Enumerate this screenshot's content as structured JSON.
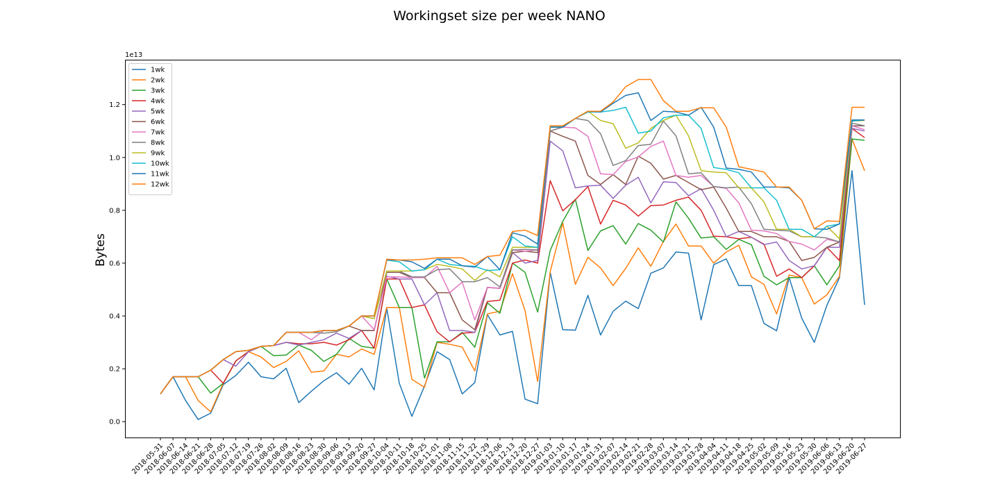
{
  "chart_data": {
    "type": "line",
    "title": "Workingset size per week NANO",
    "xlabel": "",
    "ylabel": "Bytes",
    "y_offset_label": "1e13",
    "ylim": [
      -0.06,
      1.37
    ],
    "y_ticks": [
      "0.0",
      "0.2",
      "0.4",
      "0.6",
      "0.8",
      "1.0",
      "1.2"
    ],
    "grid": false,
    "legend_position": "top-left",
    "categories": [
      "2018-05-31",
      "2018-06-07",
      "2018-06-14",
      "2018-06-21",
      "2018-06-28",
      "2018-07-05",
      "2018-07-12",
      "2018-07-19",
      "2018-07-26",
      "2018-08-02",
      "2018-08-09",
      "2018-08-16",
      "2018-08-23",
      "2018-08-30",
      "2018-09-06",
      "2018-09-13",
      "2018-09-20",
      "2018-09-27",
      "2018-10-04",
      "2018-10-11",
      "2018-10-18",
      "2018-10-25",
      "2018-11-01",
      "2018-11-08",
      "2018-11-15",
      "2018-11-22",
      "2018-11-29",
      "2018-12-06",
      "2018-12-13",
      "2018-12-20",
      "2018-12-27",
      "2019-01-03",
      "2019-01-10",
      "2019-01-17",
      "2019-01-24",
      "2019-01-31",
      "2019-02-07",
      "2019-02-14",
      "2019-02-21",
      "2019-02-28",
      "2019-03-07",
      "2019-03-14",
      "2019-03-21",
      "2019-03-28",
      "2019-04-04",
      "2019-04-11",
      "2019-04-18",
      "2019-04-25",
      "2019-05-02",
      "2019-05-09",
      "2019-05-16",
      "2019-05-23",
      "2019-05-30",
      "2019-06-06",
      "2019-06-13",
      "2019-06-20",
      "2019-06-27"
    ],
    "series": [
      {
        "name": "1wk",
        "color": "#1f77b4",
        "values": [
          0.105,
          0.17,
          0.08,
          0.008,
          0.032,
          0.14,
          0.175,
          0.225,
          0.17,
          0.162,
          0.202,
          0.072,
          0.115,
          0.155,
          0.185,
          0.142,
          0.202,
          0.12,
          0.43,
          0.145,
          0.02,
          0.135,
          0.265,
          0.235,
          0.105,
          0.148,
          0.405,
          0.328,
          0.342,
          0.085,
          0.068,
          0.565,
          0.348,
          0.346,
          0.478,
          0.328,
          0.418,
          0.456,
          0.428,
          0.562,
          0.582,
          0.642,
          0.638,
          0.385,
          0.594,
          0.616,
          0.515,
          0.515,
          0.372,
          0.344,
          0.545,
          0.392,
          0.3,
          0.44,
          0.545,
          0.95,
          0.442
        ]
      },
      {
        "name": "2wk",
        "color": "#ff7f0e",
        "values": [
          0.105,
          0.17,
          0.17,
          0.08,
          0.037,
          0.145,
          0.23,
          0.265,
          0.245,
          0.205,
          0.228,
          0.268,
          0.187,
          0.192,
          0.255,
          0.245,
          0.275,
          0.255,
          0.432,
          0.432,
          0.16,
          0.13,
          0.3,
          0.293,
          0.282,
          0.192,
          0.408,
          0.418,
          0.56,
          0.42,
          0.152,
          0.568,
          0.752,
          0.52,
          0.622,
          0.582,
          0.515,
          0.58,
          0.658,
          0.588,
          0.682,
          0.748,
          0.665,
          0.665,
          0.6,
          0.642,
          0.668,
          0.548,
          0.52,
          0.408,
          0.555,
          0.545,
          0.445,
          0.48,
          0.55,
          1.07,
          0.95
        ]
      },
      {
        "name": "3wk",
        "color": "#2ca02c",
        "values": [
          0.105,
          0.17,
          0.17,
          0.17,
          0.108,
          0.145,
          0.23,
          0.265,
          0.285,
          0.25,
          0.252,
          0.29,
          0.27,
          0.228,
          0.255,
          0.315,
          0.285,
          0.278,
          0.54,
          0.432,
          0.432,
          0.165,
          0.302,
          0.302,
          0.338,
          0.282,
          0.45,
          0.41,
          0.6,
          0.565,
          0.415,
          0.648,
          0.758,
          0.842,
          0.648,
          0.722,
          0.742,
          0.672,
          0.75,
          0.725,
          0.68,
          0.832,
          0.77,
          0.695,
          0.7,
          0.652,
          0.69,
          0.67,
          0.55,
          0.518,
          0.545,
          0.545,
          0.59,
          0.518,
          0.59,
          1.07,
          1.065
        ]
      },
      {
        "name": "4wk",
        "color": "#d62728",
        "values": [
          0.105,
          0.17,
          0.17,
          0.17,
          0.195,
          0.145,
          0.23,
          0.265,
          0.285,
          0.288,
          0.3,
          0.295,
          0.295,
          0.3,
          0.29,
          0.31,
          0.345,
          0.278,
          0.54,
          0.54,
          0.432,
          0.442,
          0.34,
          0.302,
          0.335,
          0.338,
          0.455,
          0.46,
          0.6,
          0.612,
          0.6,
          0.912,
          0.798,
          0.84,
          0.89,
          0.748,
          0.838,
          0.82,
          0.778,
          0.818,
          0.82,
          0.838,
          0.85,
          0.8,
          0.702,
          0.7,
          0.692,
          0.698,
          0.672,
          0.55,
          0.578,
          0.545,
          0.59,
          0.66,
          0.61,
          1.11,
          1.075
        ]
      },
      {
        "name": "5wk",
        "color": "#9467bd",
        "values": [
          0.105,
          0.17,
          0.17,
          0.17,
          0.195,
          0.235,
          0.21,
          0.265,
          0.285,
          0.288,
          0.3,
          0.29,
          0.3,
          0.31,
          0.335,
          0.315,
          0.345,
          0.345,
          0.55,
          0.54,
          0.54,
          0.442,
          0.488,
          0.345,
          0.345,
          0.338,
          0.508,
          0.505,
          0.64,
          0.6,
          0.61,
          1.062,
          1.025,
          0.885,
          0.892,
          0.895,
          0.845,
          0.895,
          0.925,
          0.828,
          0.908,
          0.905,
          0.855,
          0.882,
          0.8,
          0.7,
          0.72,
          0.698,
          0.67,
          0.68,
          0.61,
          0.578,
          0.59,
          0.66,
          0.66,
          1.11,
          1.1
        ]
      },
      {
        "name": "6wk",
        "color": "#8c564b",
        "values": [
          0.105,
          0.17,
          0.17,
          0.17,
          0.195,
          0.235,
          0.265,
          0.27,
          0.285,
          0.288,
          0.338,
          0.338,
          0.338,
          0.345,
          0.345,
          0.362,
          0.345,
          0.345,
          0.565,
          0.565,
          0.545,
          0.545,
          0.488,
          0.488,
          0.385,
          0.348,
          0.508,
          0.505,
          0.64,
          0.645,
          0.64,
          1.1,
          1.08,
          1.062,
          0.932,
          0.898,
          0.935,
          0.898,
          1.005,
          0.978,
          0.918,
          0.932,
          0.905,
          0.878,
          0.888,
          0.808,
          0.72,
          0.72,
          0.7,
          0.7,
          0.682,
          0.61,
          0.622,
          0.66,
          0.68,
          1.12,
          1.12
        ]
      },
      {
        "name": "7wk",
        "color": "#e377c2",
        "values": [
          0.105,
          0.17,
          0.17,
          0.17,
          0.195,
          0.235,
          0.265,
          0.27,
          0.285,
          0.288,
          0.338,
          0.338,
          0.31,
          0.345,
          0.345,
          0.362,
          0.4,
          0.348,
          0.548,
          0.548,
          0.545,
          0.545,
          0.588,
          0.488,
          0.528,
          0.385,
          0.508,
          0.505,
          0.65,
          0.645,
          0.65,
          1.1,
          1.115,
          1.112,
          1.08,
          0.938,
          0.935,
          0.985,
          1.002,
          1.042,
          1.062,
          0.932,
          0.925,
          0.932,
          0.89,
          0.883,
          0.828,
          0.725,
          0.722,
          0.712,
          0.682,
          0.672,
          0.65,
          0.69,
          0.68,
          1.12,
          1.105
        ]
      },
      {
        "name": "8wk",
        "color": "#7f7f7f",
        "values": [
          0.105,
          0.17,
          0.17,
          0.17,
          0.195,
          0.235,
          0.265,
          0.27,
          0.285,
          0.288,
          0.338,
          0.338,
          0.338,
          0.335,
          0.34,
          0.362,
          0.4,
          0.39,
          0.57,
          0.57,
          0.548,
          0.548,
          0.575,
          0.578,
          0.53,
          0.53,
          0.545,
          0.51,
          0.65,
          0.652,
          0.65,
          1.1,
          1.115,
          1.148,
          1.14,
          1.09,
          0.97,
          0.988,
          1.045,
          1.05,
          1.138,
          1.082,
          0.938,
          0.942,
          0.89,
          0.885,
          0.888,
          0.825,
          0.728,
          0.725,
          0.722,
          0.7,
          0.7,
          0.695,
          0.68,
          1.13,
          1.12
        ]
      },
      {
        "name": "9wk",
        "color": "#bcbd22",
        "values": [
          0.105,
          0.17,
          0.17,
          0.17,
          0.195,
          0.235,
          0.265,
          0.27,
          0.285,
          0.288,
          0.338,
          0.338,
          0.338,
          0.345,
          0.345,
          0.362,
          0.4,
          0.39,
          0.57,
          0.57,
          0.57,
          0.575,
          0.595,
          0.588,
          0.578,
          0.535,
          0.575,
          0.548,
          0.66,
          0.66,
          0.66,
          1.115,
          1.115,
          1.148,
          1.175,
          1.14,
          1.128,
          1.035,
          1.055,
          1.11,
          1.14,
          1.16,
          1.082,
          0.95,
          0.945,
          0.942,
          0.885,
          0.885,
          0.832,
          0.728,
          0.728,
          0.7,
          0.7,
          0.74,
          0.692,
          1.138,
          1.14
        ]
      },
      {
        "name": "10wk",
        "color": "#17becf",
        "values": [
          0.105,
          0.17,
          0.17,
          0.17,
          0.195,
          0.235,
          0.265,
          0.27,
          0.285,
          0.288,
          0.338,
          0.338,
          0.338,
          0.345,
          0.345,
          0.362,
          0.4,
          0.4,
          0.612,
          0.605,
          0.57,
          0.575,
          0.615,
          0.595,
          0.59,
          0.588,
          0.572,
          0.575,
          0.7,
          0.665,
          0.66,
          1.115,
          1.115,
          1.148,
          1.172,
          1.172,
          1.178,
          1.19,
          1.092,
          1.1,
          1.15,
          1.16,
          1.16,
          1.11,
          0.962,
          0.955,
          0.942,
          0.885,
          0.885,
          0.838,
          0.728,
          0.728,
          0.7,
          0.74,
          0.748,
          1.138,
          1.142
        ]
      },
      {
        "name": "11wk",
        "color": "#1f77b4",
        "values": [
          0.105,
          0.17,
          0.17,
          0.17,
          0.195,
          0.235,
          0.265,
          0.27,
          0.285,
          0.288,
          0.338,
          0.338,
          0.338,
          0.345,
          0.345,
          0.362,
          0.4,
          0.4,
          0.612,
          0.612,
          0.605,
          0.58,
          0.615,
          0.615,
          0.59,
          0.585,
          0.625,
          0.575,
          0.715,
          0.702,
          0.672,
          1.115,
          1.115,
          1.148,
          1.175,
          1.172,
          1.205,
          1.235,
          1.245,
          1.14,
          1.175,
          1.172,
          1.16,
          1.19,
          1.115,
          0.96,
          0.955,
          0.945,
          0.888,
          0.888,
          0.885,
          0.838,
          0.73,
          0.728,
          0.748,
          1.142,
          1.142
        ]
      },
      {
        "name": "12wk",
        "color": "#ff7f0e",
        "values": [
          0.105,
          0.17,
          0.17,
          0.17,
          0.195,
          0.235,
          0.265,
          0.27,
          0.285,
          0.288,
          0.338,
          0.338,
          0.338,
          0.345,
          0.345,
          0.362,
          0.4,
          0.4,
          0.615,
          0.612,
          0.612,
          0.615,
          0.62,
          0.62,
          0.62,
          0.595,
          0.625,
          0.63,
          0.72,
          0.725,
          0.705,
          1.12,
          1.12,
          1.148,
          1.175,
          1.175,
          1.21,
          1.268,
          1.295,
          1.295,
          1.215,
          1.175,
          1.175,
          1.188,
          1.188,
          1.115,
          0.965,
          0.955,
          0.945,
          0.888,
          0.888,
          0.838,
          0.73,
          0.76,
          0.758,
          1.19,
          1.19
        ]
      }
    ]
  }
}
